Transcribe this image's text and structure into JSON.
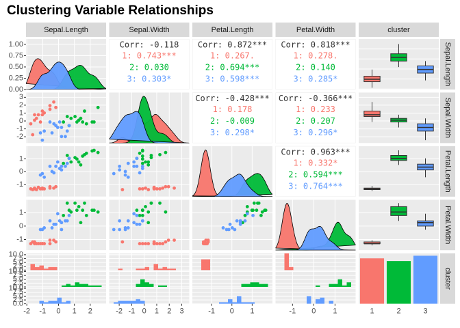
{
  "chart_data": {
    "type": "pairs",
    "title": "Clustering Variable Relationships",
    "group_variable": "cluster",
    "variables": [
      {
        "name": "Sepal.Length",
        "lim": [
          -2.05,
          3.0
        ],
        "ticks": [
          -2,
          -1,
          0,
          1,
          2
        ]
      },
      {
        "name": "Sepal.Width",
        "lim": [
          -2.8,
          3.6
        ],
        "ticks": [
          -2,
          -1,
          0,
          1,
          2,
          3
        ]
      },
      {
        "name": "Petal.Length",
        "lim": [
          -1.95,
          2.0
        ],
        "ticks": [
          -1,
          0,
          1
        ]
      },
      {
        "name": "Petal.Width",
        "lim": [
          -1.8,
          1.97
        ],
        "ticks": [
          -1,
          0,
          1
        ]
      }
    ],
    "density_ylim": [
      0,
      1.12
    ],
    "density_yticks": [
      {
        "value": 0,
        "label": "0.00"
      },
      {
        "value": 0.25,
        "label": "0.25"
      },
      {
        "value": 0.5,
        "label": "0.50"
      },
      {
        "value": 0.75,
        "label": "0.75"
      },
      {
        "value": 1,
        "label": "1.00"
      }
    ],
    "count_ylim": [
      0,
      11
    ],
    "count_yticks": [
      {
        "value": 0,
        "label": "0.0"
      },
      {
        "value": 2.5,
        "label": "2.5"
      },
      {
        "value": 5,
        "label": "5.0"
      },
      {
        "value": 7.5,
        "label": "7.5"
      },
      {
        "value": 10,
        "label": "10.0"
      }
    ],
    "clusters": [
      {
        "name": "1",
        "color": "#F8766D",
        "count": 50,
        "points": [
          [
            -0.9,
            1.02,
            -1.34,
            -1.31
          ],
          [
            -1.14,
            -0.13,
            -1.34,
            -1.31
          ],
          [
            -1.39,
            0.33,
            -1.4,
            -1.31
          ],
          [
            -1.51,
            0.1,
            -1.28,
            -1.31
          ],
          [
            -1.02,
            1.25,
            -1.34,
            -1.31
          ],
          [
            -0.54,
            1.94,
            -1.17,
            -1.05
          ],
          [
            -1.51,
            0.79,
            -1.34,
            -1.18
          ],
          [
            -1.02,
            0.79,
            -1.28,
            -1.31
          ],
          [
            -1.75,
            -0.36,
            -1.34,
            -1.31
          ],
          [
            -0.54,
            1.48,
            -1.28,
            -1.31
          ],
          [
            -0.17,
            1.71,
            -1.17,
            -1.18
          ],
          [
            -1.27,
            0.79,
            -1.22,
            -1.31
          ],
          [
            -1.63,
            -1.74,
            -1.4,
            -1.18
          ],
          [
            -0.3,
            2.4,
            -1.28,
            -1.05
          ]
        ],
        "box": [
          [
            -1.87,
            -1.27,
            -1.02,
            -0.72,
            -0.05
          ],
          [
            -0.13,
            0.56,
            0.79,
            1.25,
            2.4
          ],
          [
            -1.51,
            -1.4,
            -1.34,
            -1.28,
            -1.11
          ],
          [
            -1.44,
            -1.31,
            -1.31,
            -1.18,
            -1.05
          ]
        ]
      },
      {
        "name": "2",
        "color": "#00BA38",
        "count": 47,
        "points": [
          [
            1.4,
            0.33,
            0.53,
            0.26
          ],
          [
            1.04,
            0.56,
            1.1,
            1.71
          ],
          [
            2.49,
            1.71,
            1.5,
            1.05
          ],
          [
            0.55,
            0.56,
            1.27,
            1.71
          ],
          [
            1.64,
            1.25,
            1.33,
            1.71
          ],
          [
            2.24,
            -0.13,
            1.67,
            1.18
          ],
          [
            1.28,
            0.1,
            0.76,
            1.45
          ],
          [
            0.67,
            -0.59,
            1.04,
            1.18
          ],
          [
            1.76,
            -0.36,
            1.44,
            0.79
          ],
          [
            0.79,
            0.33,
            0.76,
            1.05
          ],
          [
            1.16,
            -0.13,
            0.99,
            1.18
          ],
          [
            2.12,
            -0.13,
            1.62,
            1.18
          ],
          [
            0.31,
            -0.13,
            0.65,
            0.79
          ],
          [
            1.52,
            -0.13,
            1.22,
            1.18
          ]
        ],
        "box": [
          [
            0.19,
            0.79,
            1.16,
            1.52,
            2.49
          ],
          [
            -0.82,
            -0.13,
            0.1,
            0.33,
            0.79
          ],
          [
            0.53,
            0.88,
            1.04,
            1.27,
            1.67
          ],
          [
            0.39,
            0.79,
            1.05,
            1.45,
            1.71
          ]
        ]
      },
      {
        "name": "3",
        "color": "#619CFF",
        "count": 53,
        "points": [
          [
            0.19,
            -1.97,
            0.14,
            -0.26
          ],
          [
            -0.17,
            -0.59,
            0.42,
            0.13
          ],
          [
            0.55,
            -1.28,
            0.65,
            0.39
          ],
          [
            -0.29,
            -0.36,
            -0.09,
            0.13
          ],
          [
            0.43,
            -1.97,
            0.42,
            0.39
          ],
          [
            -1.14,
            -1.51,
            -0.26,
            -0.26
          ],
          [
            -0.05,
            -0.82,
            0.76,
            0.92
          ],
          [
            0.19,
            -0.82,
            0.42,
            0.26
          ],
          [
            -0.41,
            -1.51,
            0.02,
            -0.13
          ],
          [
            -0.9,
            -1.28,
            -0.43,
            -0.13
          ],
          [
            0.07,
            -0.13,
            0.25,
            0.39
          ],
          [
            0.67,
            -0.59,
            1.04,
            0.79
          ],
          [
            -1.02,
            -2.43,
            -0.15,
            -0.26
          ],
          [
            -0.54,
            -0.13,
            0.42,
            0.39
          ]
        ],
        "box": [
          [
            -1.14,
            -0.41,
            -0.05,
            0.31,
            0.79
          ],
          [
            -2.43,
            -1.28,
            -0.82,
            -0.36,
            0.33
          ],
          [
            -0.43,
            0.14,
            0.36,
            0.59,
            1.04
          ],
          [
            -0.26,
            0.0,
            0.26,
            0.39,
            0.92
          ]
        ]
      }
    ],
    "correlations": [
      {
        "overall": {
          "value": -0.118,
          "label": "Corr: -0.118"
        },
        "groups": [
          {
            "value": 0.743,
            "label": "1: 0.743***"
          },
          {
            "value": 0.03,
            "label": "2: 0.030"
          },
          {
            "value": 0.303,
            "label": "3: 0.303*"
          }
        ]
      },
      {
        "overall": {
          "value": 0.872,
          "label": "Corr: 0.872***"
        },
        "groups": [
          {
            "value": 0.267,
            "label": "1: 0.267."
          },
          {
            "value": 0.694,
            "label": "2: 0.694***"
          },
          {
            "value": 0.598,
            "label": "3: 0.598***"
          }
        ]
      },
      {
        "overall": {
          "value": 0.818,
          "label": "Corr: 0.818***"
        },
        "groups": [
          {
            "value": 0.278,
            "label": "1: 0.278."
          },
          {
            "value": 0.14,
            "label": "2: 0.140"
          },
          {
            "value": 0.285,
            "label": "3: 0.285*"
          }
        ]
      },
      {
        "overall": {
          "value": -0.428,
          "label": "Corr: -0.428***"
        },
        "groups": [
          {
            "value": 0.178,
            "label": "1: 0.178"
          },
          {
            "value": -0.009,
            "label": "2: -0.009"
          },
          {
            "value": 0.298,
            "label": "3: 0.298*"
          }
        ]
      },
      {
        "overall": {
          "value": -0.366,
          "label": "Corr: -0.366***"
        },
        "groups": [
          {
            "value": 0.233,
            "label": "1: 0.233"
          },
          {
            "value": 0.207,
            "label": "2: 0.207"
          },
          {
            "value": 0.296,
            "label": "3: 0.296*"
          }
        ]
      },
      {
        "overall": {
          "value": 0.963,
          "label": "Corr: 0.963***"
        },
        "groups": [
          {
            "value": 0.332,
            "label": "1: 0.332*"
          },
          {
            "value": 0.594,
            "label": "2: 0.594***"
          },
          {
            "value": 0.764,
            "label": "3: 0.764***"
          }
        ]
      }
    ]
  }
}
